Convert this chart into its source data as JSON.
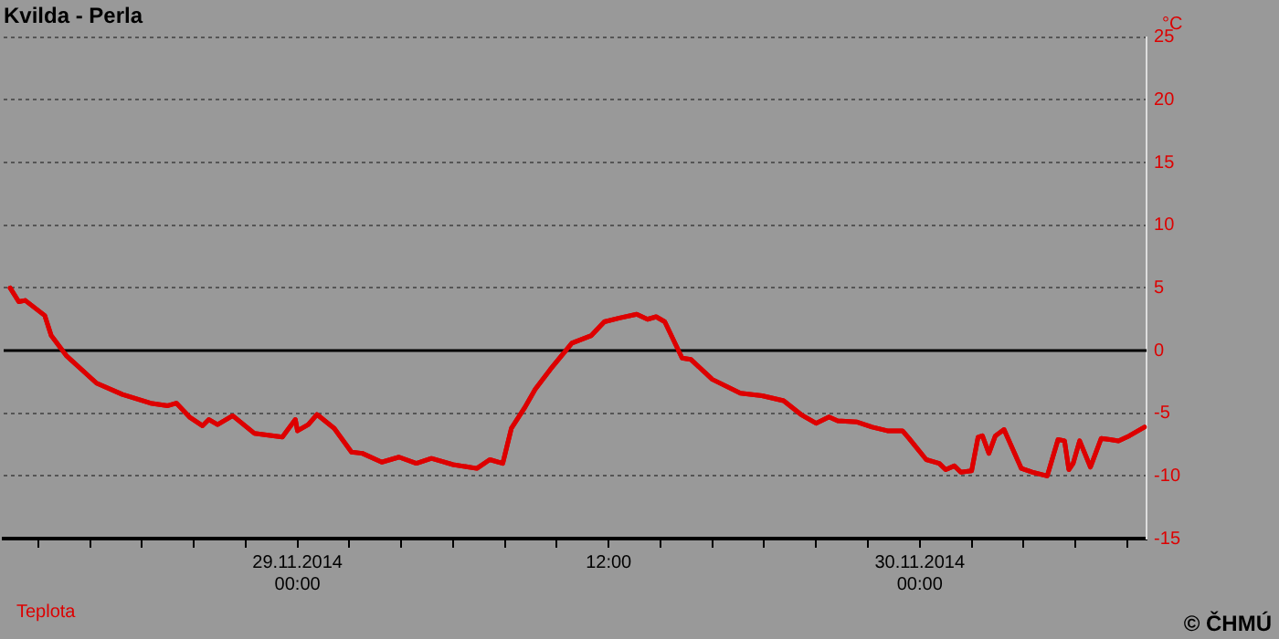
{
  "chart_data": {
    "type": "line",
    "title": "Kvilda - Perla",
    "ylabel": "°C",
    "annotations": [
      "© ČHMÚ"
    ],
    "x": [
      "2014-11-28T12:55",
      "2014-11-28T13:15",
      "2014-11-28T13:30",
      "2014-11-28T14:15",
      "2014-11-28T14:30",
      "2014-11-28T15:05",
      "2014-11-28T16:15",
      "2014-11-28T17:15",
      "2014-11-28T18:20",
      "2014-11-28T19:00",
      "2014-11-28T19:20",
      "2014-11-28T19:50",
      "2014-11-28T20:20",
      "2014-11-28T20:35",
      "2014-11-28T20:55",
      "2014-11-28T21:30",
      "2014-11-28T22:20",
      "2014-11-28T23:25",
      "2014-11-28T23:55",
      "2014-11-29T00:00",
      "2014-11-29T00:25",
      "2014-11-29T00:45",
      "2014-11-29T01:25",
      "2014-11-29T02:05",
      "2014-11-29T02:30",
      "2014-11-29T03:15",
      "2014-11-29T03:55",
      "2014-11-29T04:35",
      "2014-11-29T05:10",
      "2014-11-29T06:00",
      "2014-11-29T06:55",
      "2014-11-29T07:25",
      "2014-11-29T07:55",
      "2014-11-29T08:15",
      "2014-11-29T08:45",
      "2014-11-29T09:10",
      "2014-11-29T09:45",
      "2014-11-29T10:35",
      "2014-11-29T11:20",
      "2014-11-29T11:50",
      "2014-11-29T12:25",
      "2014-11-29T13:05",
      "2014-11-29T13:30",
      "2014-11-29T13:50",
      "2014-11-29T14:10",
      "2014-11-29T14:50",
      "2014-11-29T15:10",
      "2014-11-29T16:00",
      "2014-11-29T17:05",
      "2014-11-29T17:55",
      "2014-11-29T18:45",
      "2014-11-29T19:25",
      "2014-11-29T20:00",
      "2014-11-29T20:30",
      "2014-11-29T20:50",
      "2014-11-29T21:35",
      "2014-11-29T22:10",
      "2014-11-29T22:45",
      "2014-11-29T23:20",
      "2014-11-29T23:35",
      "2014-11-30T00:15",
      "2014-11-30T00:45",
      "2014-11-30T01:00",
      "2014-11-30T01:20",
      "2014-11-30T01:35",
      "2014-11-30T02:00",
      "2014-11-30T02:15",
      "2014-11-30T02:25",
      "2014-11-30T02:40",
      "2014-11-30T02:55",
      "2014-11-30T03:15",
      "2014-11-30T03:55",
      "2014-11-30T04:20",
      "2014-11-30T04:55",
      "2014-11-30T05:20",
      "2014-11-30T05:35",
      "2014-11-30T05:45",
      "2014-11-30T05:55",
      "2014-11-30T06:10",
      "2014-11-30T06:35",
      "2014-11-30T07:00",
      "2014-11-30T07:20",
      "2014-11-30T07:40",
      "2014-11-30T08:05",
      "2014-11-30T08:40"
    ],
    "series": [
      {
        "name": "Teplota",
        "color": "#dd0000",
        "values": [
          5.0,
          3.9,
          4.0,
          2.8,
          1.2,
          -0.4,
          -2.6,
          -3.5,
          -4.2,
          -4.4,
          -4.2,
          -5.3,
          -6.0,
          -5.5,
          -5.9,
          -5.2,
          -6.6,
          -6.9,
          -5.5,
          -6.4,
          -5.9,
          -5.1,
          -6.2,
          -8.1,
          -8.2,
          -8.9,
          -8.5,
          -9.0,
          -8.6,
          -9.1,
          -9.4,
          -8.7,
          -9.0,
          -6.2,
          -4.6,
          -3.1,
          -1.5,
          0.6,
          1.2,
          2.3,
          2.6,
          2.9,
          2.5,
          2.7,
          2.3,
          -0.6,
          -0.7,
          -2.3,
          -3.4,
          -3.6,
          -4.0,
          -5.1,
          -5.8,
          -5.3,
          -5.6,
          -5.7,
          -6.1,
          -6.4,
          -6.4,
          -7.0,
          -8.7,
          -9.0,
          -9.5,
          -9.2,
          -9.7,
          -9.6,
          -6.9,
          -6.8,
          -8.2,
          -6.8,
          -6.3,
          -9.4,
          -9.7,
          -10.0,
          -7.1,
          -7.2,
          -9.5,
          -9.0,
          -7.2,
          -9.3,
          -7.0,
          -7.1,
          -7.2,
          -6.8,
          -6.1
        ]
      }
    ],
    "xlim": [
      "2014-11-28T12:40",
      "2014-11-30T08:45"
    ],
    "xticks": [
      {
        "value": "2014-11-28T14:00",
        "label": null
      },
      {
        "value": "2014-11-28T16:00",
        "label": null
      },
      {
        "value": "2014-11-28T18:00",
        "label": null
      },
      {
        "value": "2014-11-28T20:00",
        "label": null
      },
      {
        "value": "2014-11-28T22:00",
        "label": null
      },
      {
        "value": "2014-11-29T00:00",
        "label": "29.11.2014\n00:00"
      },
      {
        "value": "2014-11-29T02:00",
        "label": null
      },
      {
        "value": "2014-11-29T04:00",
        "label": null
      },
      {
        "value": "2014-11-29T06:00",
        "label": null
      },
      {
        "value": "2014-11-29T08:00",
        "label": null
      },
      {
        "value": "2014-11-29T10:00",
        "label": null
      },
      {
        "value": "2014-11-29T12:00",
        "label": "12:00"
      },
      {
        "value": "2014-11-29T14:00",
        "label": null
      },
      {
        "value": "2014-11-29T16:00",
        "label": null
      },
      {
        "value": "2014-11-29T18:00",
        "label": null
      },
      {
        "value": "2014-11-29T20:00",
        "label": null
      },
      {
        "value": "2014-11-29T22:00",
        "label": null
      },
      {
        "value": "2014-11-30T00:00",
        "label": "30.11.2014\n00:00"
      },
      {
        "value": "2014-11-30T02:00",
        "label": null
      },
      {
        "value": "2014-11-30T04:00",
        "label": null
      },
      {
        "value": "2014-11-30T06:00",
        "label": null
      },
      {
        "value": "2014-11-30T08:00",
        "label": null
      }
    ],
    "ylim": [
      -15,
      25
    ],
    "yticks": [
      -15,
      -10,
      -5,
      0,
      5,
      10,
      15,
      20,
      25
    ],
    "ref_lines": [
      {
        "axis": "y",
        "value": 0,
        "color": "#000000"
      }
    ],
    "grid": "y",
    "legend": "bottom left",
    "marker": "none",
    "line_style": "solid"
  }
}
